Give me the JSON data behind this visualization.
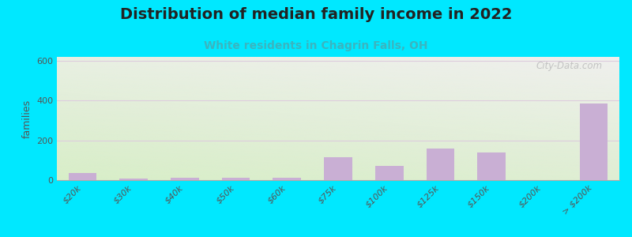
{
  "title": "Distribution of median family income in 2022",
  "subtitle": "White residents in Chagrin Falls, OH",
  "ylabel": "families",
  "categories": [
    "$20k",
    "$30k",
    "$40k",
    "$50k",
    "$60k",
    "$75k",
    "$100k",
    "$125k",
    "$150k",
    "$200k",
    "> $200k"
  ],
  "values": [
    35,
    8,
    13,
    12,
    10,
    115,
    70,
    160,
    140,
    0,
    385
  ],
  "bar_color": "#c9afd4",
  "background_outer": "#00e8ff",
  "background_plot_top_color": "#f0f0ee",
  "background_plot_bottom_color": "#d8eec8",
  "grid_color": "#ddccdd",
  "ylim": [
    0,
    620
  ],
  "yticks": [
    0,
    200,
    400,
    600
  ],
  "title_fontsize": 14,
  "subtitle_fontsize": 10,
  "watermark": "City-Data.com",
  "bar_width": 0.55
}
